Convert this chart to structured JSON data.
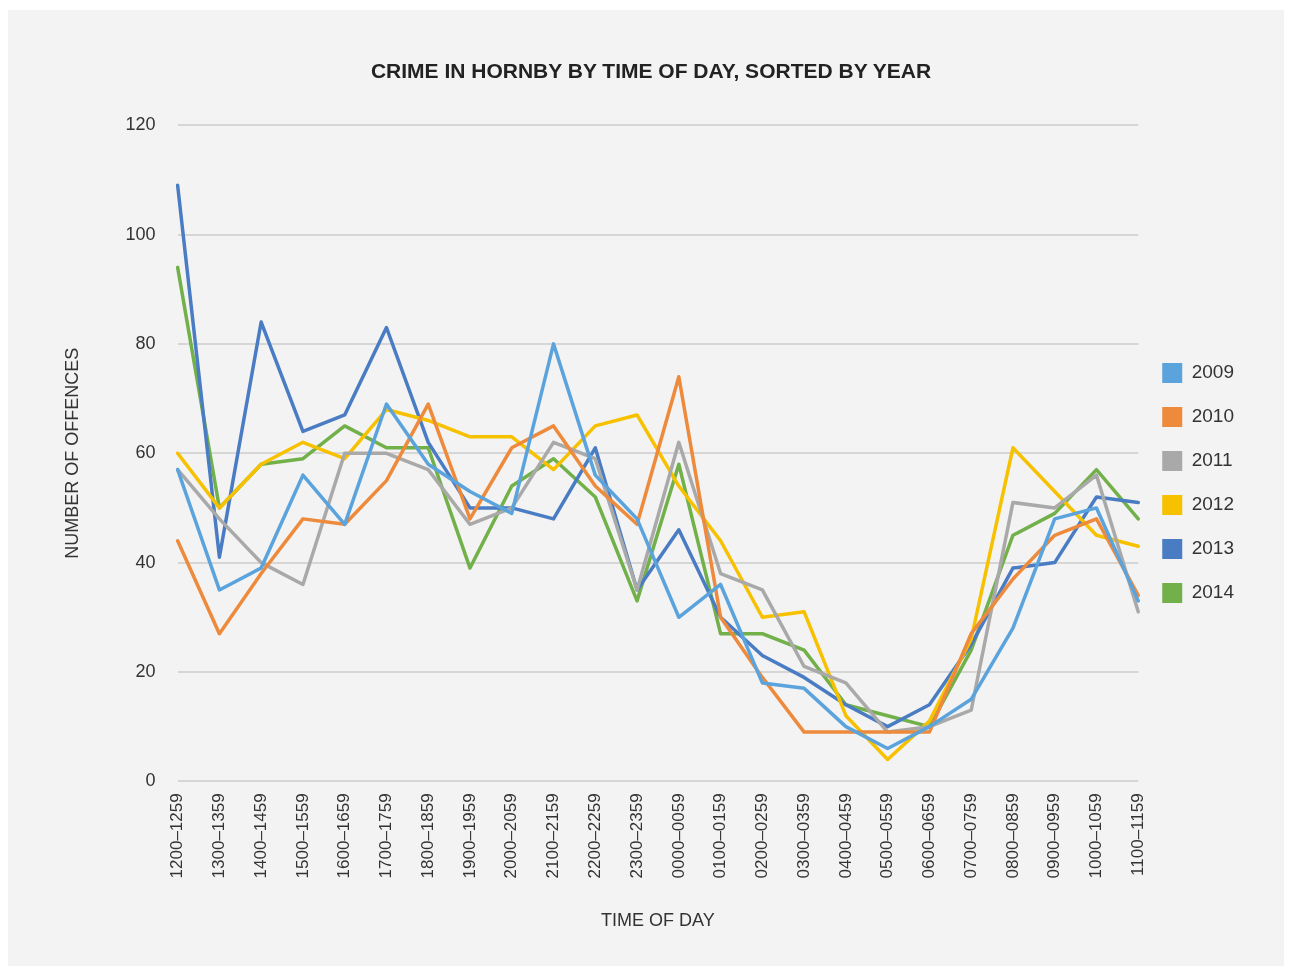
{
  "chart_data": {
    "type": "line",
    "title": "CRIME IN HORNBY BY TIME OF DAY, SORTED BY YEAR",
    "xlabel": "TIME OF DAY",
    "ylabel": "NUMBER OF OFFENCES",
    "categories": [
      "1200–1259",
      "1300–1359",
      "1400–1459",
      "1500–1559",
      "1600–1659",
      "1700–1759",
      "1800–1859",
      "1900–1959",
      "2000–2059",
      "2100–2159",
      "2200–2259",
      "2300–2359",
      "0000–0059",
      "0100–0159",
      "0200–0259",
      "0300–0359",
      "0400–0459",
      "0500–0559",
      "0600–0659",
      "0700–0759",
      "0800–0859",
      "0900–0959",
      "1000–1059",
      "1100–1159"
    ],
    "series": [
      {
        "name": "2009",
        "color": "#5ba3dc",
        "values": [
          57,
          35,
          39,
          56,
          47,
          69,
          58,
          53,
          49,
          80,
          56,
          48,
          30,
          36,
          18,
          17,
          10,
          6,
          10,
          15,
          28,
          48,
          50,
          33
        ]
      },
      {
        "name": "2010",
        "color": "#ed8a3c",
        "values": [
          44,
          27,
          38,
          48,
          47,
          55,
          69,
          48,
          61,
          65,
          54,
          47,
          74,
          30,
          19,
          9,
          9,
          9,
          9,
          27,
          37,
          45,
          48,
          34
        ]
      },
      {
        "name": "2011",
        "color": "#a9a9a9",
        "values": [
          57,
          48,
          40,
          36,
          60,
          60,
          57,
          47,
          50,
          62,
          59,
          35,
          62,
          38,
          35,
          21,
          18,
          9,
          10,
          13,
          51,
          50,
          56,
          31
        ]
      },
      {
        "name": "2012",
        "color": "#f7c100",
        "values": [
          60,
          50,
          58,
          62,
          59,
          68,
          66,
          63,
          63,
          57,
          65,
          67,
          54,
          44,
          30,
          31,
          12,
          4,
          11,
          26,
          61,
          53,
          45,
          43
        ]
      },
      {
        "name": "2013",
        "color": "#4a7cc4",
        "values": [
          109,
          41,
          84,
          64,
          67,
          83,
          62,
          50,
          50,
          48,
          61,
          35,
          46,
          30,
          23,
          19,
          14,
          10,
          14,
          25,
          39,
          40,
          52,
          51
        ]
      },
      {
        "name": "2014",
        "color": "#72b04a",
        "values": [
          94,
          50,
          58,
          59,
          65,
          61,
          61,
          39,
          54,
          59,
          52,
          33,
          58,
          27,
          27,
          24,
          14,
          12,
          10,
          24,
          45,
          49,
          57,
          48
        ]
      }
    ],
    "ylim": [
      0,
      120
    ],
    "yticks": [
      0,
      20,
      40,
      60,
      80,
      100,
      120
    ],
    "grid": "y",
    "legend": "right",
    "marker": "none",
    "line_style": "solid"
  }
}
